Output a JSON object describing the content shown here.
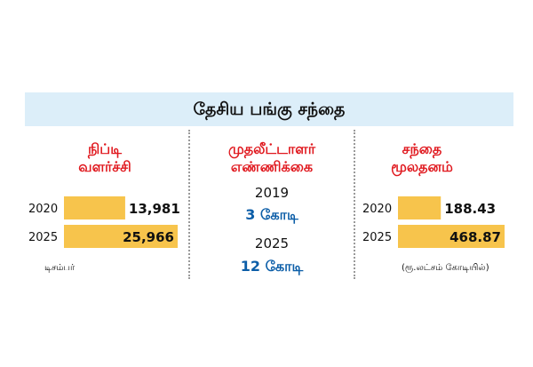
{
  "title": "தேசிய பங்கு சந்தை",
  "colors": {
    "bar": "#f7c44c",
    "header": "#e0191f",
    "mid_value": "#0c5ea8",
    "band": "#dceef9"
  },
  "nifty": {
    "title_line1": "நிப்டி",
    "title_line2": "வளர்ச்சி",
    "note": "டிசம்பர்"
  },
  "investors": {
    "title_line1": "முதலீட்டாளர்",
    "title_line2": "எண்ணிக்கை",
    "rows": [
      {
        "year": "2019",
        "value": "3 கோடி"
      },
      {
        "year": "2025",
        "value": "12 கோடி"
      }
    ]
  },
  "mcap": {
    "title_line1": "சந்தை",
    "title_line2": "மூலதனம்",
    "note": "(ரூ.லட்சம் கோடியில்)"
  },
  "chart_data": [
    {
      "type": "bar",
      "orientation": "horizontal",
      "title": "நிப்டி வளர்ச்சி",
      "categories": [
        "2020",
        "2025"
      ],
      "values": [
        13981,
        25966
      ],
      "value_labels": [
        "13,981",
        "25,966"
      ],
      "note": "டிசம்பர்"
    },
    {
      "type": "bar",
      "orientation": "horizontal",
      "title": "சந்தை மூலதனம்",
      "categories": [
        "2020",
        "2025"
      ],
      "values": [
        188.43,
        468.87
      ],
      "value_labels": [
        "188.43",
        "468.87"
      ],
      "note": "(ரூ.லட்சம் கோடியில்)"
    }
  ]
}
